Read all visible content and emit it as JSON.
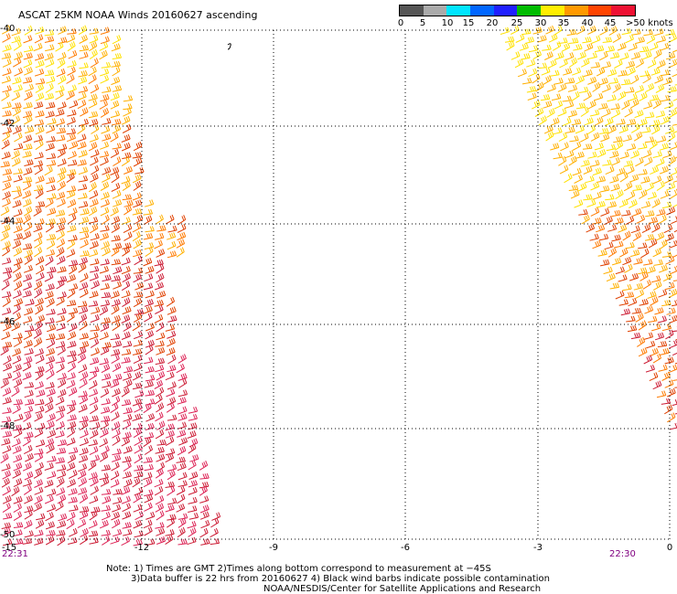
{
  "title": "ASCAT 25KM NOAA Winds 20160627 ascending",
  "legend": {
    "labels": [
      "0",
      "5",
      "10",
      "15",
      "20",
      "25",
      "30",
      "35",
      "40",
      "45",
      ">50 knots"
    ],
    "colors": [
      "#555555",
      "#aaaaaa",
      "#00e5ff",
      "#0066ff",
      "#1f1fff",
      "#00bb00",
      "#ffee00",
      "#ff9900",
      "#ff4400",
      "#ee1133",
      "#7a2a00",
      "#cc0099",
      "#8800ee",
      "#3d0066"
    ]
  },
  "map": {
    "lat_labels": [
      "-40",
      "-42",
      "-44",
      "-46",
      "-48",
      "-50"
    ],
    "lon_labels": [
      "-15",
      "-12",
      "-9",
      "-6",
      "-3",
      "0"
    ],
    "left_swath_time": "22:31",
    "right_swath_time": "22:30",
    "barb_colors": [
      "#ffe100",
      "#ffb000",
      "#ff7a00",
      "#e04000",
      "#cc1a33",
      "#dd2255"
    ]
  },
  "notes": {
    "line1": "Note: 1) Times are GMT 2)Times along bottom correspond to measurement at −45S",
    "line2": "3)Data buffer is 22 hrs from 20160627 4) Black wind barbs indicate possible contamination",
    "line3": "NOAA/NESDIS/Center for Satellite Applications and Research"
  }
}
